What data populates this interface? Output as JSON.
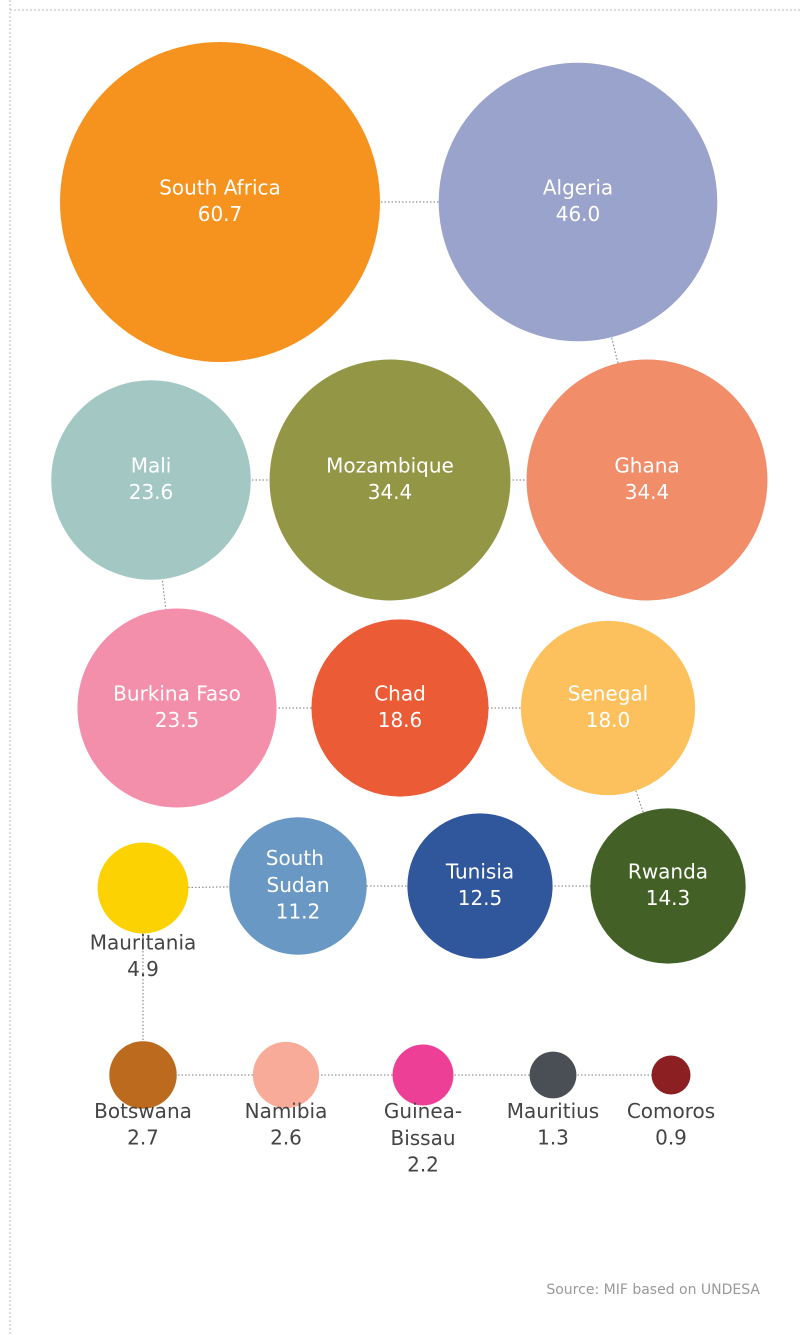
{
  "chart_data": {
    "type": "bubble",
    "categories": [
      "South Africa",
      "Algeria",
      "Ghana",
      "Mozambique",
      "Mali",
      "Burkina Faso",
      "Chad",
      "Senegal",
      "Rwanda",
      "Tunisia",
      "South Sudan",
      "Mauritania",
      "Botswana",
      "Namibia",
      "Guinea-Bissau",
      "Mauritius",
      "Comoros"
    ],
    "values": [
      60.7,
      46.0,
      34.4,
      34.4,
      23.6,
      23.5,
      18.6,
      18.0,
      14.3,
      12.5,
      11.2,
      4.9,
      2.7,
      2.6,
      2.2,
      1.3,
      0.9
    ],
    "value_labels": [
      "60.7",
      "46.0",
      "34.4",
      "34.4",
      "23.6",
      "23.5",
      "18.6",
      "18.0",
      "14.3",
      "12.5",
      "11.2",
      "4.9",
      "2.7",
      "2.6",
      "2.2",
      "1.3",
      "0.9"
    ],
    "colors": [
      "#f6921e",
      "#9aa3cb",
      "#f28d69",
      "#939745",
      "#a3c8c3",
      "#f48fab",
      "#eb5b36",
      "#fcc15c",
      "#436126",
      "#30569b",
      "#6898c3",
      "#fdd203",
      "#bc6a1e",
      "#f7ab98",
      "#ee3f96",
      "#4a4e55",
      "#8b1f22"
    ],
    "source": "Source: MIF based on UNDESA"
  }
}
